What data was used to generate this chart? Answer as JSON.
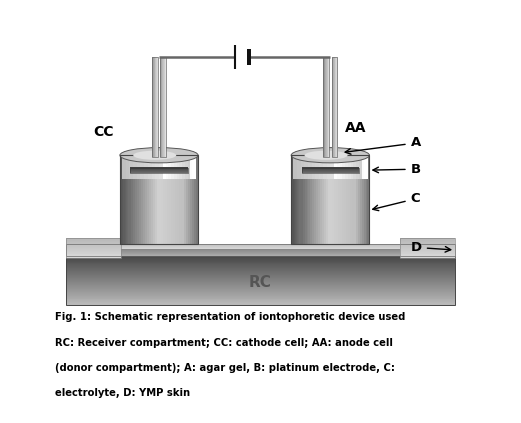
{
  "fig_width": 5.21,
  "fig_height": 4.23,
  "dpi": 100,
  "bg_color": "#ffffff",
  "caption_line1": "Fig. 1: Schematic representation of iontophoretic device used",
  "caption_line2": "RC: Receiver compartment; CC: cathode cell; AA: anode cell",
  "caption_line3": "(donor compartment); A: agar gel, B: platinum electrode, C:",
  "caption_line4": "electrolyte, D: YMP skin",
  "label_CC": "CC",
  "label_AA": "AA",
  "label_A": "A",
  "label_B": "B",
  "label_C": "C",
  "label_D": "D",
  "label_RC": "RC"
}
